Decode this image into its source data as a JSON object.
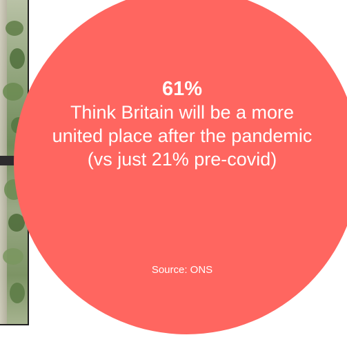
{
  "infographic": {
    "statistic": "61%",
    "claim": "Think Britain will be a more united place after the pandemic (vs just 21% pre-covid)",
    "source": "Source: ONS"
  },
  "colors": {
    "circle": "#ff6660",
    "text": "#ffffff",
    "photo_border": "#1e1e1e"
  }
}
